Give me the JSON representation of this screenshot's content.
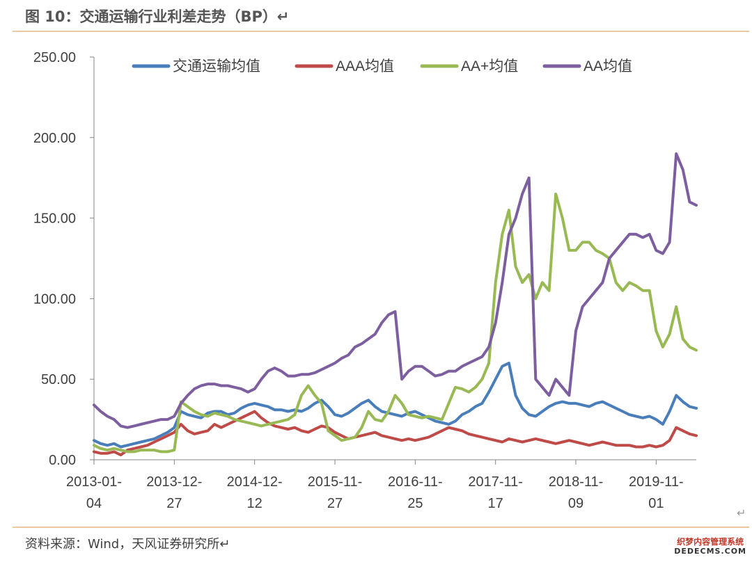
{
  "header": {
    "title": "图 10：交通运输行业利差走势（BP）↵"
  },
  "footer": {
    "source": "资料来源：Wind，天风证券研究所↵"
  },
  "watermark": {
    "line1": "织梦内容管理系统",
    "line2": "DEDECMS.COM"
  },
  "return_mark": "↵",
  "chart_data": {
    "type": "line",
    "title": "",
    "xlabel": "",
    "ylabel": "",
    "ylim": [
      0,
      250
    ],
    "yticks": [
      "0.00",
      "50.00",
      "100.00",
      "150.00",
      "200.00",
      "250.00"
    ],
    "xlim": [
      0,
      90
    ],
    "xtick_positions": [
      0,
      12,
      24,
      36,
      48,
      60,
      72,
      84
    ],
    "xticks": [
      [
        "2013-01-",
        "04"
      ],
      [
        "2013-12-",
        "27"
      ],
      [
        "2014-12-",
        "12"
      ],
      [
        "2015-11-",
        "27"
      ],
      [
        "2016-11-",
        "25"
      ],
      [
        "2017-11-",
        "17"
      ],
      [
        "2018-11-",
        "09"
      ],
      [
        "2019-11-",
        "01"
      ]
    ],
    "grid": false,
    "legend_position": "top",
    "x": [
      0,
      1,
      2,
      3,
      4,
      5,
      6,
      7,
      8,
      9,
      10,
      11,
      12,
      13,
      14,
      15,
      16,
      17,
      18,
      19,
      20,
      21,
      22,
      23,
      24,
      25,
      26,
      27,
      28,
      29,
      30,
      31,
      32,
      33,
      34,
      35,
      36,
      37,
      38,
      39,
      40,
      41,
      42,
      43,
      44,
      45,
      46,
      47,
      48,
      49,
      50,
      51,
      52,
      53,
      54,
      55,
      56,
      57,
      58,
      59,
      60,
      61,
      62,
      63,
      64,
      65,
      66,
      67,
      68,
      69,
      70,
      71,
      72,
      73,
      74,
      75,
      76,
      77,
      78,
      79,
      80,
      81,
      82,
      83,
      84,
      85,
      86,
      87,
      88,
      89,
      90
    ],
    "series": [
      {
        "name": "交通运输均值",
        "color": "#4a7ebb",
        "values": [
          12,
          10,
          9,
          10,
          8,
          9,
          10,
          11,
          12,
          13,
          15,
          17,
          20,
          30,
          28,
          27,
          26,
          29,
          30,
          30,
          28,
          29,
          32,
          34,
          35,
          34,
          33,
          31,
          31,
          30,
          31,
          30,
          32,
          35,
          37,
          33,
          28,
          27,
          29,
          32,
          35,
          37,
          33,
          30,
          29,
          28,
          27,
          29,
          30,
          28,
          26,
          24,
          23,
          22,
          24,
          28,
          30,
          33,
          35,
          42,
          50,
          58,
          60,
          40,
          32,
          28,
          27,
          30,
          33,
          35,
          36,
          35,
          35,
          34,
          33,
          35,
          36,
          34,
          32,
          30,
          28,
          27,
          26,
          27,
          25,
          22,
          30,
          40,
          36,
          33,
          32
        ]
      },
      {
        "name": "AAA均值",
        "color": "#be4b48",
        "values": [
          5,
          4,
          4,
          5,
          3,
          6,
          7,
          8,
          9,
          11,
          13,
          15,
          17,
          22,
          18,
          16,
          17,
          18,
          22,
          20,
          22,
          24,
          26,
          28,
          30,
          26,
          23,
          21,
          20,
          19,
          20,
          18,
          17,
          19,
          21,
          20,
          17,
          15,
          13,
          14,
          15,
          16,
          17,
          15,
          14,
          13,
          12,
          13,
          12,
          13,
          14,
          16,
          18,
          20,
          19,
          18,
          16,
          15,
          14,
          13,
          12,
          11,
          13,
          12,
          11,
          12,
          13,
          12,
          11,
          10,
          11,
          12,
          11,
          10,
          9,
          10,
          11,
          10,
          9,
          9,
          9,
          8,
          8,
          9,
          8,
          9,
          12,
          20,
          18,
          16,
          15
        ]
      },
      {
        "name": "AA+均值",
        "color": "#98b954",
        "values": [
          9,
          7,
          6,
          7,
          6,
          5,
          5,
          6,
          6,
          6,
          5,
          5,
          6,
          36,
          33,
          30,
          28,
          27,
          29,
          28,
          27,
          25,
          24,
          23,
          22,
          21,
          22,
          23,
          24,
          25,
          28,
          40,
          46,
          40,
          35,
          18,
          15,
          12,
          13,
          14,
          20,
          30,
          25,
          24,
          30,
          40,
          35,
          28,
          27,
          26,
          27,
          26,
          25,
          35,
          45,
          44,
          42,
          45,
          50,
          60,
          110,
          140,
          155,
          120,
          110,
          115,
          100,
          110,
          105,
          165,
          150,
          130,
          130,
          135,
          135,
          130,
          128,
          125,
          110,
          105,
          110,
          108,
          105,
          105,
          80,
          70,
          78,
          95,
          75,
          70,
          68
        ]
      },
      {
        "name": "AA均值",
        "color": "#7d5fa0",
        "values": [
          34,
          30,
          27,
          25,
          21,
          20,
          21,
          22,
          23,
          24,
          25,
          25,
          27,
          35,
          40,
          44,
          46,
          47,
          47,
          46,
          46,
          45,
          44,
          42,
          44,
          50,
          55,
          57,
          55,
          52,
          52,
          53,
          53,
          54,
          56,
          58,
          60,
          63,
          65,
          70,
          72,
          75,
          78,
          85,
          90,
          92,
          50,
          55,
          58,
          58,
          55,
          52,
          53,
          55,
          55,
          58,
          60,
          62,
          64,
          70,
          85,
          110,
          140,
          150,
          165,
          175,
          50,
          45,
          40,
          50,
          45,
          40,
          80,
          95,
          100,
          105,
          110,
          125,
          130,
          135,
          140,
          140,
          138,
          140,
          130,
          128,
          135,
          190,
          180,
          160,
          158
        ]
      }
    ]
  }
}
